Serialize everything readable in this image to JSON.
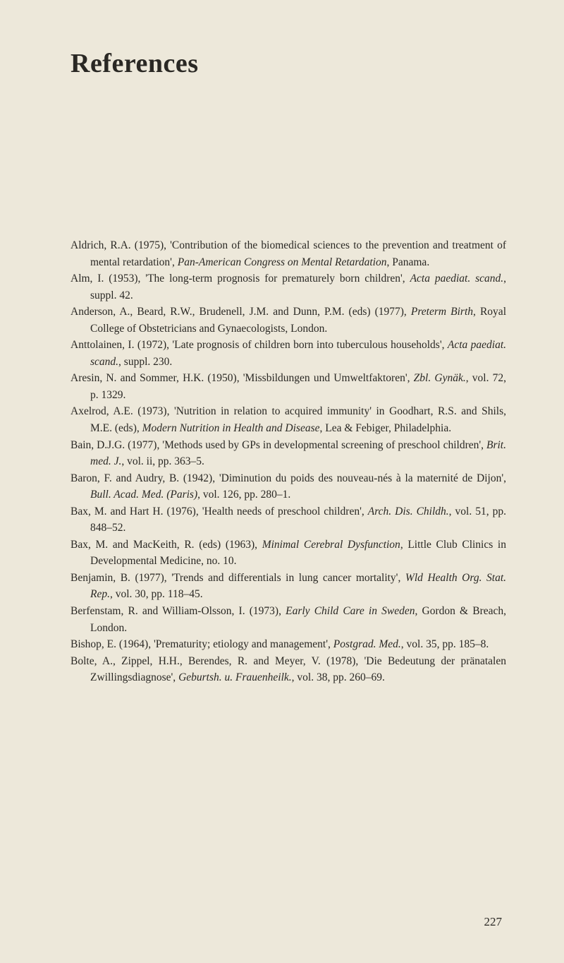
{
  "page": {
    "title": "References",
    "pageNumber": "227",
    "backgroundColor": "#ede8da",
    "textColor": "#2a2824"
  },
  "references": [
    {
      "html": "Aldrich, R.A. (1975), 'Contribution of the biomedical sciences to the prevention and treatment of mental retardation', <em>Pan-American Congress on Mental Retardation</em>, Panama."
    },
    {
      "html": "Alm, I. (1953), 'The long-term prognosis for prematurely born children', <em>Acta paediat. scand.</em>, suppl. 42."
    },
    {
      "html": "Anderson, A., Beard, R.W., Brudenell, J.M. and Dunn, P.M. (eds) (1977), <em>Preterm Birth</em>, Royal College of Obstetricians and Gynaecologists, London."
    },
    {
      "html": "Anttolainen, I. (1972), 'Late prognosis of children born into tuberculous households', <em>Acta paediat. scand.</em>, suppl. 230."
    },
    {
      "html": "Aresin, N. and Sommer, H.K. (1950), 'Missbildungen und Umweltfaktoren', <em>Zbl. Gynäk.</em>, vol. 72, p. 1329."
    },
    {
      "html": "Axelrod, A.E. (1973), 'Nutrition in relation to acquired immunity' in Goodhart, R.S. and Shils, M.E. (eds), <em>Modern Nutrition in Health and Disease</em>, Lea & Febiger, Philadelphia."
    },
    {
      "html": "Bain, D.J.G. (1977), 'Methods used by GPs in developmental screening of preschool children', <em>Brit. med. J.</em>, vol. ii, pp. 363–5."
    },
    {
      "html": "Baron, F. and Audry, B. (1942), 'Diminution du poids des nouveau-nés à la maternité de Dijon', <em>Bull. Acad. Med. (Paris)</em>, vol. 126, pp. 280–1."
    },
    {
      "html": "Bax, M. and Hart H. (1976), 'Health needs of preschool children', <em>Arch. Dis. Childh.</em>, vol. 51, pp. 848–52."
    },
    {
      "html": "Bax, M. and MacKeith, R. (eds) (1963), <em>Minimal Cerebral Dysfunction</em>, Little Club Clinics in Developmental Medicine, no. 10."
    },
    {
      "html": "Benjamin, B. (1977), 'Trends and differentials in lung cancer mortality', <em>Wld Health Org. Stat. Rep.</em>, vol. 30, pp. 118–45."
    },
    {
      "html": "Berfenstam, R. and William-Olsson, I. (1973), <em>Early Child Care in Sweden</em>, Gordon & Breach, London."
    },
    {
      "html": "Bishop, E. (1964), 'Prematurity; etiology and management', <em>Postgrad. Med.</em>, vol. 35, pp. 185–8."
    },
    {
      "html": "Bolte, A., Zippel, H.H., Berendes, R. and Meyer, V. (1978), 'Die Bedeutung der pränatalen Zwillingsdiagnose', <em>Geburtsh. u. Frauenheilk.</em>, vol. 38, pp. 260–69."
    }
  ]
}
